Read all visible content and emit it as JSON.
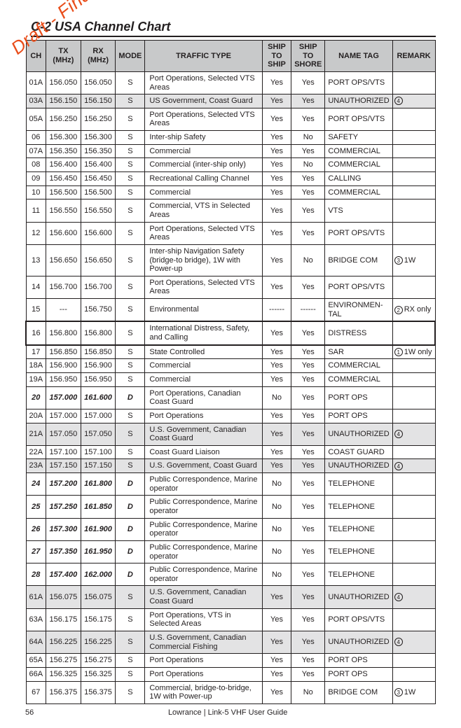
{
  "watermark": "Draft - Final approval",
  "title": "C-2 USA Channel Chart",
  "columns": [
    "CH",
    "TX (MHz)",
    "RX (MHz)",
    "MODE",
    "TRAFFIC TYPE",
    "SHIP TO SHIP",
    "SHIP TO SHORE",
    "NAME TAG",
    "REMARK"
  ],
  "rows": [
    {
      "ch": "01A",
      "tx": "156.050",
      "rx": "156.050",
      "mode": "S",
      "traffic": "Port Operations, Selected VTS Areas",
      "ship": "Yes",
      "shore": "Yes",
      "tag": "PORT OPS/VTS",
      "remark": "",
      "shade": false
    },
    {
      "ch": "03A",
      "tx": "156.150",
      "rx": "156.150",
      "mode": "S",
      "traffic": "US Government, Coast Guard",
      "ship": "Yes",
      "shore": "Yes",
      "tag": "UNAUTHORIZED",
      "remark": "④",
      "shade": true
    },
    {
      "ch": "05A",
      "tx": "156.250",
      "rx": "156.250",
      "mode": "S",
      "traffic": "Port Operations, Selected VTS Areas",
      "ship": "Yes",
      "shore": "Yes",
      "tag": "PORT OPS/VTS",
      "remark": "",
      "shade": false
    },
    {
      "ch": "06",
      "tx": "156.300",
      "rx": "156.300",
      "mode": "S",
      "traffic": "Inter-ship Safety",
      "ship": "Yes",
      "shore": "No",
      "tag": "SAFETY",
      "remark": "",
      "shade": false
    },
    {
      "ch": "07A",
      "tx": "156.350",
      "rx": "156.350",
      "mode": "S",
      "traffic": "Commercial",
      "ship": "Yes",
      "shore": "Yes",
      "tag": "COMMERCIAL",
      "remark": "",
      "shade": false
    },
    {
      "ch": "08",
      "tx": "156.400",
      "rx": "156.400",
      "mode": "S",
      "traffic": "Commercial (inter-ship only)",
      "ship": "Yes",
      "shore": "No",
      "tag": "COMMERCIAL",
      "remark": "",
      "shade": false
    },
    {
      "ch": "09",
      "tx": "156.450",
      "rx": "156.450",
      "mode": "S",
      "traffic": "Recreational Calling Channel",
      "ship": "Yes",
      "shore": "Yes",
      "tag": "CALLING",
      "remark": "",
      "shade": false
    },
    {
      "ch": "10",
      "tx": "156.500",
      "rx": "156.500",
      "mode": "S",
      "traffic": "Commercial",
      "ship": "Yes",
      "shore": "Yes",
      "tag": "COMMERCIAL",
      "remark": "",
      "shade": false
    },
    {
      "ch": "11",
      "tx": "156.550",
      "rx": "156.550",
      "mode": "S",
      "traffic": "Commercial, VTS in Selected Areas",
      "ship": "Yes",
      "shore": "Yes",
      "tag": "VTS",
      "remark": "",
      "shade": false
    },
    {
      "ch": "12",
      "tx": "156.600",
      "rx": "156.600",
      "mode": "S",
      "traffic": "Port Operations, Selected VTS Areas",
      "ship": "Yes",
      "shore": "Yes",
      "tag": "PORT OPS/VTS",
      "remark": "",
      "shade": false
    },
    {
      "ch": "13",
      "tx": "156.650",
      "rx": "156.650",
      "mode": "S",
      "traffic": "Inter-ship Navigation Safety (bridge-to bridge), 1W  with Power-up",
      "ship": "Yes",
      "shore": "No",
      "tag": "BRIDGE COM",
      "remark": "③ 1W",
      "shade": false
    },
    {
      "ch": "14",
      "tx": "156.700",
      "rx": "156.700",
      "mode": "S",
      "traffic": "Port Operations, Selected VTS Areas",
      "ship": "Yes",
      "shore": "Yes",
      "tag": "PORT OPS/VTS",
      "remark": "",
      "shade": false
    },
    {
      "ch": "15",
      "tx": "---",
      "rx": "156.750",
      "mode": "S",
      "traffic": "Environmental",
      "ship": "------",
      "shore": "------",
      "tag": "ENVIRONMEN-TAL",
      "remark": "② RX only",
      "shade": false
    },
    {
      "ch": "16",
      "tx": "156.800",
      "rx": "156.800",
      "mode": "S",
      "traffic": "International Distress, Safety, and Calling",
      "ship": "Yes",
      "shore": "Yes",
      "tag": "DISTRESS",
      "remark": "",
      "shade": false,
      "heavy": true
    },
    {
      "ch": "17",
      "tx": "156.850",
      "rx": "156.850",
      "mode": "S",
      "traffic": "State Controlled",
      "ship": "Yes",
      "shore": "Yes",
      "tag": "SAR",
      "remark": "① 1W only",
      "shade": false
    },
    {
      "ch": "18A",
      "tx": "156.900",
      "rx": "156.900",
      "mode": "S",
      "traffic": "Commercial",
      "ship": "Yes",
      "shore": "Yes",
      "tag": "COMMERCIAL",
      "remark": "",
      "shade": false
    },
    {
      "ch": "19A",
      "tx": "156.950",
      "rx": "156.950",
      "mode": "S",
      "traffic": "Commercial",
      "ship": "Yes",
      "shore": "Yes",
      "tag": "COMMERCIAL",
      "remark": "",
      "shade": false
    },
    {
      "ch": "20",
      "tx": "157.000",
      "rx": "161.600",
      "mode": "D",
      "traffic": "Port Operations, Canadian Coast Guard",
      "ship": "No",
      "shore": "Yes",
      "tag": "PORT OPS",
      "remark": "",
      "shade": false,
      "bold": true
    },
    {
      "ch": "20A",
      "tx": "157.000",
      "rx": "157.000",
      "mode": "S",
      "traffic": "Port Operations",
      "ship": "Yes",
      "shore": "Yes",
      "tag": "PORT OPS",
      "remark": "",
      "shade": false
    },
    {
      "ch": "21A",
      "tx": "157.050",
      "rx": "157.050",
      "mode": "S",
      "traffic": "U.S. Government, Canadian Coast Guard",
      "ship": "Yes",
      "shore": "Yes",
      "tag": "UNAUTHORIZED",
      "remark": "④",
      "shade": true
    },
    {
      "ch": "22A",
      "tx": "157.100",
      "rx": "157.100",
      "mode": "S",
      "traffic": "Coast Guard Liaison",
      "ship": "Yes",
      "shore": "Yes",
      "tag": "COAST GUARD",
      "remark": "",
      "shade": false
    },
    {
      "ch": "23A",
      "tx": "157.150",
      "rx": "157.150",
      "mode": "S",
      "traffic": "U.S. Government, Coast Guard",
      "ship": "Yes",
      "shore": "Yes",
      "tag": "UNAUTHORIZED",
      "remark": "④",
      "shade": true
    },
    {
      "ch": "24",
      "tx": "157.200",
      "rx": "161.800",
      "mode": "D",
      "traffic": "Public Correspondence, Marine operator",
      "ship": "No",
      "shore": "Yes",
      "tag": "TELEPHONE",
      "remark": "",
      "shade": false,
      "bold": true
    },
    {
      "ch": "25",
      "tx": "157.250",
      "rx": "161.850",
      "mode": "D",
      "traffic": "Public Correspondence, Marine operator",
      "ship": "No",
      "shore": "Yes",
      "tag": "TELEPHONE",
      "remark": "",
      "shade": false,
      "bold": true
    },
    {
      "ch": "26",
      "tx": "157.300",
      "rx": "161.900",
      "mode": "D",
      "traffic": "Public Correspondence, Marine operator",
      "ship": "No",
      "shore": "Yes",
      "tag": "TELEPHONE",
      "remark": "",
      "shade": false,
      "bold": true
    },
    {
      "ch": "27",
      "tx": "157.350",
      "rx": "161.950",
      "mode": "D",
      "traffic": "Public Correspondence, Marine operator",
      "ship": "No",
      "shore": "Yes",
      "tag": "TELEPHONE",
      "remark": "",
      "shade": false,
      "bold": true
    },
    {
      "ch": "28",
      "tx": "157.400",
      "rx": "162.000",
      "mode": "D",
      "traffic": "Public Correspondence, Marine operator",
      "ship": "No",
      "shore": "Yes",
      "tag": "TELEPHONE",
      "remark": "",
      "shade": false,
      "bold": true
    },
    {
      "ch": "61A",
      "tx": "156.075",
      "rx": "156.075",
      "mode": "S",
      "traffic": "U.S. Government, Canadian Coast Guard",
      "ship": "Yes",
      "shore": "Yes",
      "tag": "UNAUTHORIZED",
      "remark": "④",
      "shade": true
    },
    {
      "ch": "63A",
      "tx": "156.175",
      "rx": "156.175",
      "mode": "S",
      "traffic": "Port Operations, VTS in Selected Areas",
      "ship": "Yes",
      "shore": "Yes",
      "tag": "PORT OPS/VTS",
      "remark": "",
      "shade": false
    },
    {
      "ch": "64A",
      "tx": "156.225",
      "rx": "156.225",
      "mode": "S",
      "traffic": "U.S. Government, Canadian Commercial Fishing",
      "ship": "Yes",
      "shore": "Yes",
      "tag": "UNAUTHORIZED",
      "remark": "④",
      "shade": true
    },
    {
      "ch": "65A",
      "tx": "156.275",
      "rx": "156.275",
      "mode": "S",
      "traffic": "Port Operations",
      "ship": "Yes",
      "shore": "Yes",
      "tag": "PORT OPS",
      "remark": "",
      "shade": false
    },
    {
      "ch": "66A",
      "tx": "156.325",
      "rx": "156.325",
      "mode": "S",
      "traffic": "Port Operations",
      "ship": "Yes",
      "shore": "Yes",
      "tag": "PORT OPS",
      "remark": "",
      "shade": false
    },
    {
      "ch": "67",
      "tx": "156.375",
      "rx": "156.375",
      "mode": "S",
      "traffic": "Commercial, bridge-to-bridge, 1W with Power-up",
      "ship": "Yes",
      "shore": "No",
      "tag": "BRIDGE COM",
      "remark": "③ 1W",
      "shade": false
    }
  ],
  "footer": {
    "page": "56",
    "guide": "Lowrance | Link-5 VHF User Guide"
  }
}
